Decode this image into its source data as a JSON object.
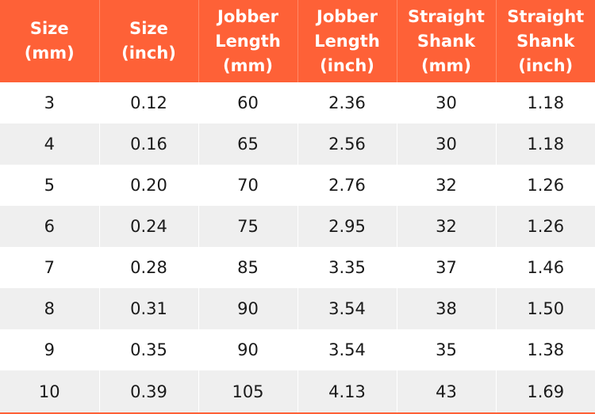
{
  "table": {
    "headers": [
      "Size\n(mm)",
      "Size\n(inch)",
      "Jobber\nLength\n(mm)",
      "Jobber\nLength\n(inch)",
      "Straight\nShank\n(mm)",
      "Straight\nShank\n(inch)"
    ],
    "rows": [
      [
        "3",
        "0.12",
        "60",
        "2.36",
        "30",
        "1.18"
      ],
      [
        "4",
        "0.16",
        "65",
        "2.56",
        "30",
        "1.18"
      ],
      [
        "5",
        "0.20",
        "70",
        "2.76",
        "32",
        "1.26"
      ],
      [
        "6",
        "0.24",
        "75",
        "2.95",
        "32",
        "1.26"
      ],
      [
        "7",
        "0.28",
        "85",
        "3.35",
        "37",
        "1.46"
      ],
      [
        "8",
        "0.31",
        "90",
        "3.54",
        "38",
        "1.50"
      ],
      [
        "9",
        "0.35",
        "90",
        "3.54",
        "35",
        "1.38"
      ],
      [
        "10",
        "0.39",
        "105",
        "4.13",
        "43",
        "1.69"
      ]
    ]
  },
  "colors": {
    "header_background": "#fe6137",
    "header_text": "#ffffff",
    "row_alt_background": "#efefef"
  }
}
